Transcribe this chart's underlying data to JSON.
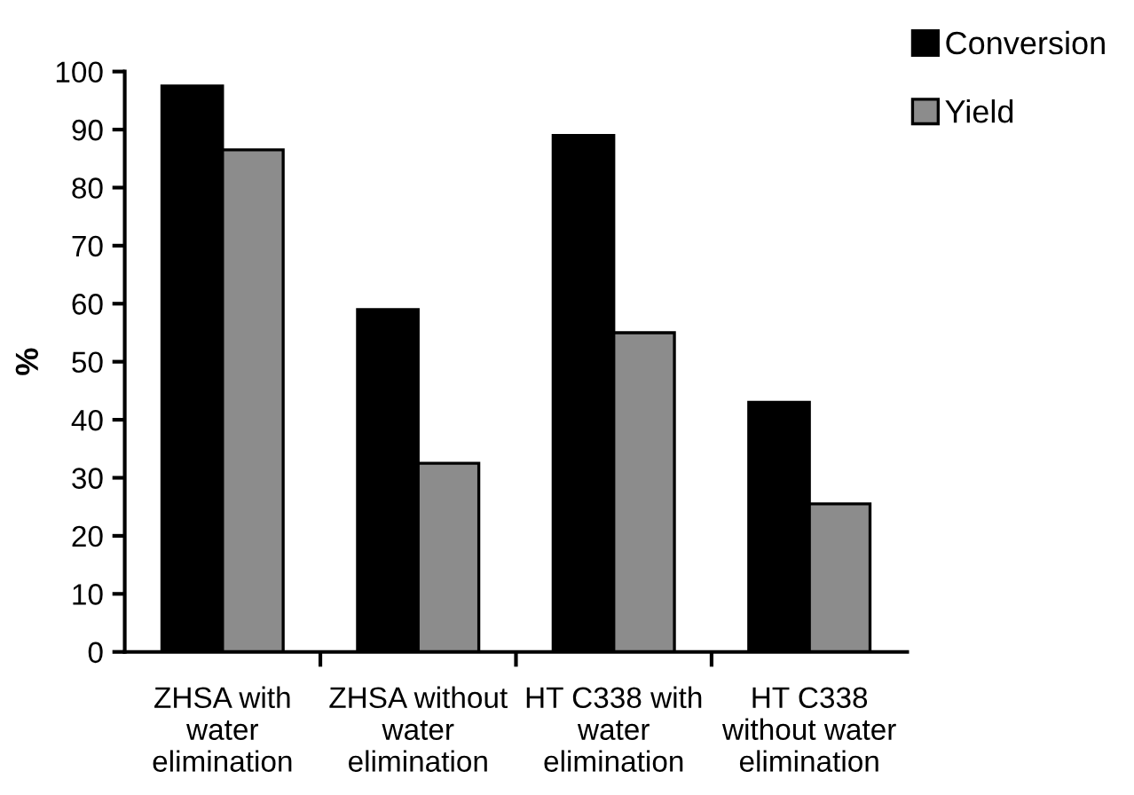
{
  "chart_data": {
    "type": "bar",
    "ylabel": "%",
    "categories": [
      "ZHSA with\nwater\nelimination",
      "ZHSA without\nwater\nelimination",
      "HT C338 with\nwater\nelimination",
      "HT C338\nwithout water\nelimination"
    ],
    "series": [
      {
        "name": "Conversion",
        "color": "#000000",
        "values": [
          97.5,
          59,
          89,
          43
        ]
      },
      {
        "name": "Yield",
        "color": "#8c8c8c",
        "values": [
          86.5,
          32.5,
          55,
          25.5
        ]
      }
    ],
    "ylim": [
      0,
      100
    ],
    "yticks": [
      0,
      10,
      20,
      30,
      40,
      50,
      60,
      70,
      80,
      90,
      100
    ],
    "grid": false,
    "legend": "top right"
  }
}
